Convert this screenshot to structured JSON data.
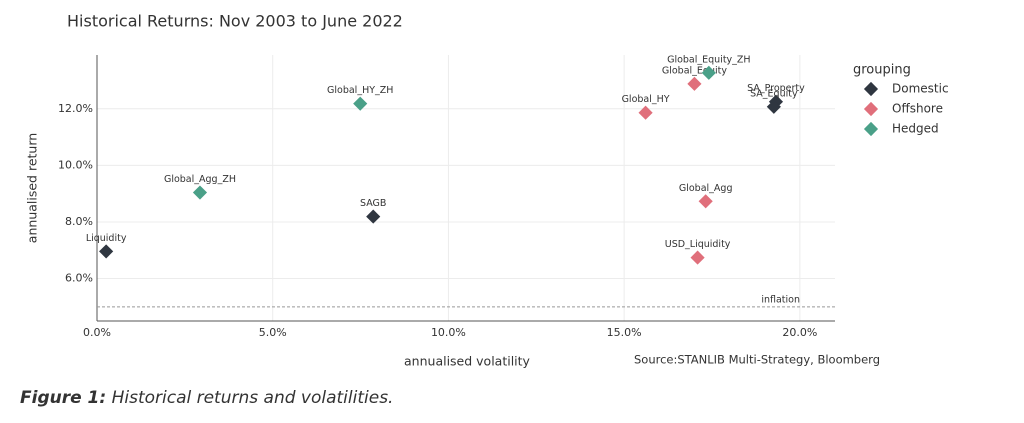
{
  "chart_data": {
    "type": "scatter",
    "title": "Historical Returns: Nov 2003 to June 2022",
    "x_label": "annualised volatility",
    "y_label": "annualised return",
    "source": "Source:STANLIB Multi-Strategy, Bloomberg",
    "legend_title": "grouping",
    "legend": "right",
    "grid": true,
    "xlim": [
      0,
      21
    ],
    "ylim": [
      4.5,
      13.9
    ],
    "xticks": [
      {
        "value": 0,
        "label": "0.0%"
      },
      {
        "value": 5,
        "label": "5.0%"
      },
      {
        "value": 10,
        "label": "10.0%"
      },
      {
        "value": 15,
        "label": "15.0%"
      },
      {
        "value": 20,
        "label": "20.0%"
      }
    ],
    "yticks": [
      {
        "value": 6,
        "label": "6.0%"
      },
      {
        "value": 8,
        "label": "8.0%"
      },
      {
        "value": 10,
        "label": "10.0%"
      },
      {
        "value": 12,
        "label": "12.0%"
      }
    ],
    "reference_line": {
      "value": 5.0,
      "label": "inflation"
    },
    "series": [
      {
        "name": "Domestic",
        "color": "#2f3640",
        "x": [
          0.26,
          7.86,
          19.32,
          19.26
        ],
        "values": [
          6.96,
          8.19,
          12.25,
          12.07
        ],
        "labels": [
          "Liquidity",
          "SAGB",
          "SA_Property",
          "SA_Equity"
        ]
      },
      {
        "name": "Offshore",
        "color": "#e06f7b",
        "x": [
          15.61,
          17.0,
          17.32,
          17.09
        ],
        "values": [
          11.86,
          12.88,
          8.73,
          6.74
        ],
        "labels": [
          "Global_HY",
          "Global_Equity",
          "Global_Agg",
          "USD_Liquidity"
        ]
      },
      {
        "name": "Hedged",
        "color": "#4aa088",
        "x": [
          2.93,
          7.49,
          17.41
        ],
        "values": [
          9.04,
          12.18,
          13.27
        ],
        "labels": [
          "Global_Agg_ZH",
          "Global_HY_ZH",
          "Global_Equity_ZH"
        ]
      }
    ]
  },
  "caption": {
    "label": "Figure 1:",
    "text": "Historical returns and volatilities."
  }
}
